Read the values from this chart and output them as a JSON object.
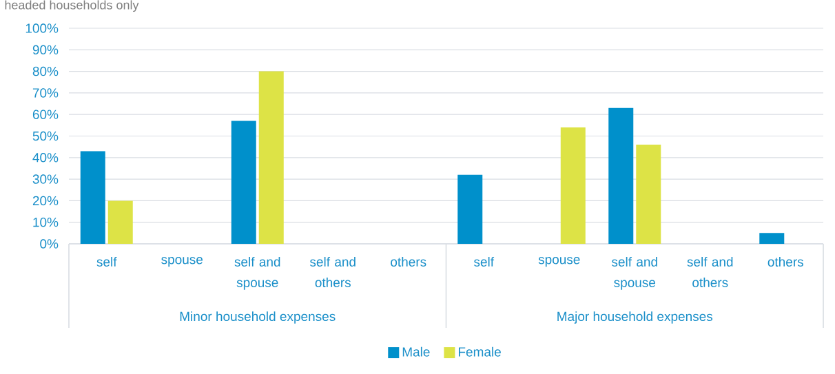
{
  "chart_data": {
    "type": "bar",
    "subtitle": "headed households only",
    "categories": [
      "self",
      "spouse",
      "self and spouse",
      "self and others",
      "others",
      "self",
      "spouse",
      "self and spouse",
      "self and others",
      "others"
    ],
    "series": [
      {
        "name": "Male",
        "color": "#0090cb",
        "values": [
          43,
          0,
          57,
          0,
          0,
          32,
          0,
          63,
          0,
          5
        ]
      },
      {
        "name": "Female",
        "color": "#dde346",
        "values": [
          20,
          0,
          80,
          0,
          0,
          0,
          54,
          46,
          0,
          0
        ]
      }
    ],
    "annotations": [
      "Minor household expenses",
      "Major household expenses"
    ],
    "ylim": [
      0,
      100
    ],
    "yticks": [
      {
        "value": 0,
        "label": "0%"
      },
      {
        "value": 10,
        "label": "10%"
      },
      {
        "value": 20,
        "label": "20%"
      },
      {
        "value": 30,
        "label": "30%"
      },
      {
        "value": 40,
        "label": "40%"
      },
      {
        "value": 50,
        "label": "50%"
      },
      {
        "value": 60,
        "label": "60%"
      },
      {
        "value": 70,
        "label": "70%"
      },
      {
        "value": 80,
        "label": "80%"
      },
      {
        "value": 90,
        "label": "90%"
      },
      {
        "value": 100,
        "label": "100%"
      }
    ],
    "grid": "y",
    "legend": "bottom"
  }
}
